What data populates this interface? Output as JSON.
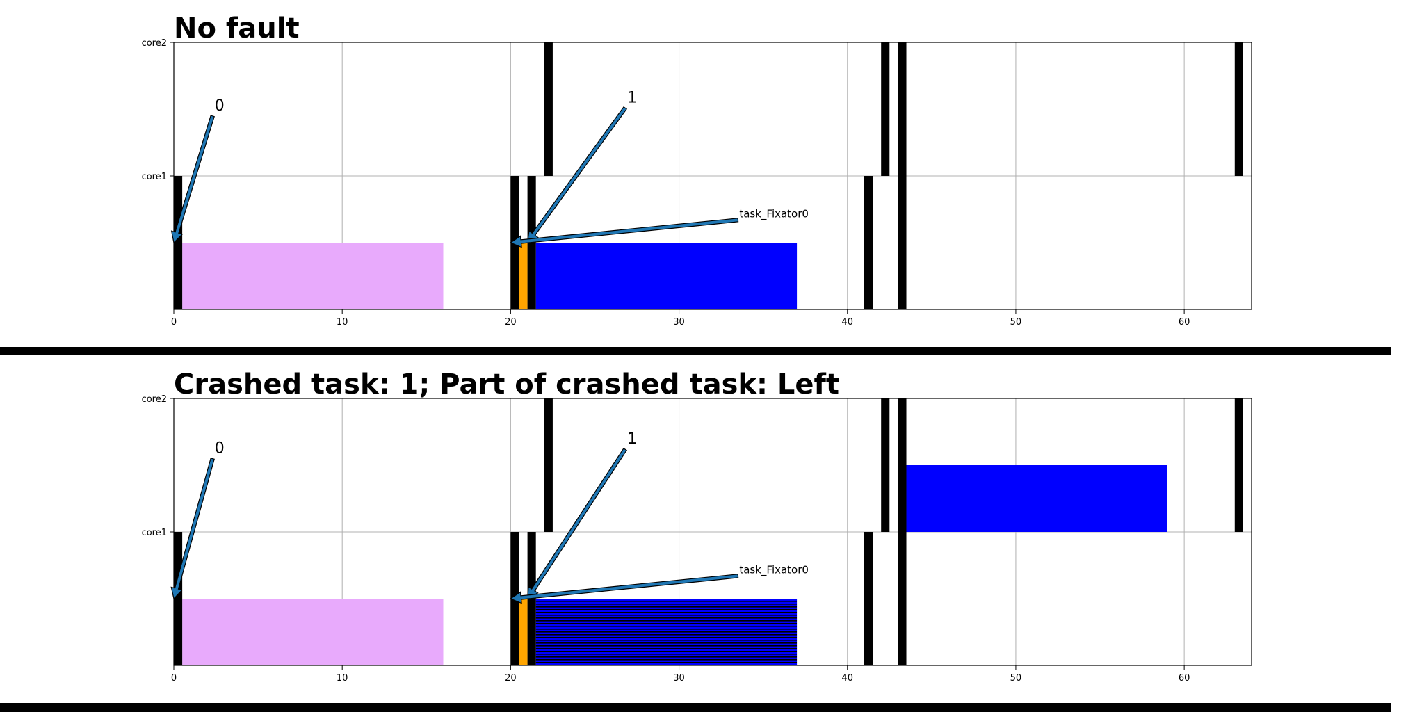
{
  "chart_data": [
    {
      "type": "gantt",
      "title": "No fault",
      "xlim": [
        0,
        64
      ],
      "x_ticks": [
        0,
        10,
        20,
        30,
        40,
        50,
        60
      ],
      "y_tick_labels": [
        "core1",
        "core2"
      ],
      "grid": true,
      "boundaries": {
        "core1": [
          [
            0,
            0.5
          ],
          [
            20,
            20.5
          ],
          [
            21,
            21.5
          ],
          [
            41,
            41.5
          ],
          [
            43,
            43.5
          ]
        ],
        "core2": [
          [
            22,
            22.5
          ],
          [
            42,
            42.5
          ],
          [
            43,
            43.5
          ],
          [
            63,
            63.5
          ]
        ]
      },
      "tasks": [
        {
          "core": "core1",
          "start": 0.5,
          "end": 16,
          "color": "#e8aafc",
          "hatch": false
        },
        {
          "core": "core1",
          "start": 20.5,
          "end": 21,
          "color": "#ffa500",
          "hatch": false
        },
        {
          "core": "core1",
          "start": 21.5,
          "end": 37,
          "color": "#0000ff",
          "hatch": false
        }
      ],
      "annotations": [
        {
          "text": "0",
          "text_x": 2.3,
          "text_y": 1.48,
          "tip_x": 0,
          "tip_y": 0.5
        },
        {
          "text": "1",
          "text_x": 26.8,
          "text_y": 1.54,
          "tip_x": 21,
          "tip_y": 0.5
        },
        {
          "text": "task_Fixator0",
          "text_x": 33.5,
          "text_y": 0.67,
          "tip_x": 20,
          "tip_y": 0.5
        }
      ]
    },
    {
      "type": "gantt",
      "title": "Crashed task: 1; Part of crashed task: Left",
      "xlim": [
        0,
        64
      ],
      "x_ticks": [
        0,
        10,
        20,
        30,
        40,
        50,
        60
      ],
      "y_tick_labels": [
        "core1",
        "core2"
      ],
      "grid": true,
      "boundaries": {
        "core1": [
          [
            0,
            0.5
          ],
          [
            20,
            20.5
          ],
          [
            21,
            21.5
          ],
          [
            41,
            41.5
          ],
          [
            43,
            43.5
          ]
        ],
        "core2": [
          [
            22,
            22.5
          ],
          [
            42,
            42.5
          ],
          [
            43,
            43.5
          ],
          [
            63,
            63.5
          ]
        ]
      },
      "tasks": [
        {
          "core": "core1",
          "start": 0.5,
          "end": 16,
          "color": "#e8aafc",
          "hatch": false
        },
        {
          "core": "core1",
          "start": 20.5,
          "end": 21,
          "color": "#ffa500",
          "hatch": false
        },
        {
          "core": "core1",
          "start": 21.5,
          "end": 37,
          "color": "#0000ff",
          "hatch": true
        },
        {
          "core": "core2",
          "start": 43.5,
          "end": 59,
          "color": "#0000ff",
          "hatch": false
        }
      ],
      "annotations": [
        {
          "text": "0",
          "text_x": 2.3,
          "text_y": 1.58,
          "tip_x": 0,
          "tip_y": 0.5
        },
        {
          "text": "1",
          "text_x": 26.8,
          "text_y": 1.65,
          "tip_x": 21,
          "tip_y": 0.5
        },
        {
          "text": "task_Fixator0",
          "text_x": 33.5,
          "text_y": 0.67,
          "tip_x": 20,
          "tip_y": 0.5
        }
      ]
    }
  ]
}
